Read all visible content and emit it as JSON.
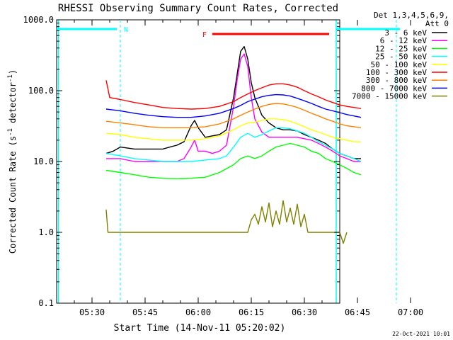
{
  "chart_data": {
    "type": "line",
    "title": "RHESSI Observing Summary Count Rates, Corrected",
    "xlabel": "Start Time (14-Nov-11 05:20:02)",
    "ylabel_main": "Corrected Count Rate (s",
    "ylabel_sup1": "-1",
    "ylabel_mid": " detector",
    "ylabel_sup2": "-1",
    "ylabel_end": ")",
    "yscale": "log",
    "ylim": [
      0.1,
      1000
    ],
    "y_ticks": [
      {
        "v": 0.1,
        "label": "0.1"
      },
      {
        "v": 1,
        "label": "1.0"
      },
      {
        "v": 10,
        "label": "10.0"
      },
      {
        "v": 100,
        "label": "100.0"
      },
      {
        "v": 1000,
        "label": "1000.0"
      }
    ],
    "xlim_min": [
      20,
      100
    ],
    "x_ticks": [
      {
        "m": 30,
        "label": "05:30"
      },
      {
        "m": 45,
        "label": "05:45"
      },
      {
        "m": 60,
        "label": "06:00"
      },
      {
        "m": 75,
        "label": "06:15"
      },
      {
        "m": 90,
        "label": "06:30"
      },
      {
        "m": 105,
        "label": "06:45"
      },
      {
        "m": 120,
        "label": "07:00"
      }
    ],
    "legend_header1": "Det 1,3,4,5,6,9,",
    "legend_header2": "Att 0",
    "series": [
      {
        "name": "3 - 6 keV",
        "color": "#000000",
        "points": [
          [
            34,
            13
          ],
          [
            36,
            14
          ],
          [
            38,
            16
          ],
          [
            42,
            15
          ],
          [
            46,
            15
          ],
          [
            50,
            15
          ],
          [
            52,
            16
          ],
          [
            54,
            17
          ],
          [
            56,
            19
          ],
          [
            58,
            32
          ],
          [
            59,
            38
          ],
          [
            60,
            30
          ],
          [
            62,
            22
          ],
          [
            64,
            23
          ],
          [
            66,
            24
          ],
          [
            68,
            28
          ],
          [
            70,
            80
          ],
          [
            71,
            170
          ],
          [
            72,
            360
          ],
          [
            73,
            420
          ],
          [
            74,
            280
          ],
          [
            75,
            130
          ],
          [
            76,
            80
          ],
          [
            78,
            45
          ],
          [
            80,
            35
          ],
          [
            82,
            30
          ],
          [
            84,
            28
          ],
          [
            86,
            28
          ],
          [
            88,
            27
          ],
          [
            90,
            24
          ],
          [
            92,
            22
          ],
          [
            94,
            20
          ],
          [
            96,
            18
          ],
          [
            98,
            15
          ],
          [
            100,
            13
          ],
          [
            102,
            12
          ],
          [
            104,
            11
          ],
          [
            106,
            11
          ]
        ]
      },
      {
        "name": "6 - 12 keV",
        "color": "#ff00ff",
        "points": [
          [
            34,
            11
          ],
          [
            38,
            11
          ],
          [
            42,
            10
          ],
          [
            46,
            10
          ],
          [
            50,
            10
          ],
          [
            54,
            10
          ],
          [
            56,
            11
          ],
          [
            58,
            16
          ],
          [
            59,
            20
          ],
          [
            60,
            14
          ],
          [
            62,
            14
          ],
          [
            64,
            13
          ],
          [
            66,
            14
          ],
          [
            68,
            17
          ],
          [
            70,
            60
          ],
          [
            71,
            140
          ],
          [
            72,
            280
          ],
          [
            73,
            330
          ],
          [
            74,
            220
          ],
          [
            75,
            80
          ],
          [
            76,
            40
          ],
          [
            78,
            26
          ],
          [
            80,
            22
          ],
          [
            82,
            22
          ],
          [
            84,
            22
          ],
          [
            86,
            22
          ],
          [
            88,
            22
          ],
          [
            90,
            21
          ],
          [
            92,
            20
          ],
          [
            94,
            18
          ],
          [
            96,
            16
          ],
          [
            98,
            14
          ],
          [
            100,
            12
          ],
          [
            102,
            11
          ],
          [
            104,
            10
          ],
          [
            106,
            10
          ]
        ]
      },
      {
        "name": "12 - 25 keV",
        "color": "#00ff00",
        "points": [
          [
            34,
            7.5
          ],
          [
            38,
            7
          ],
          [
            42,
            6.5
          ],
          [
            46,
            6
          ],
          [
            50,
            5.8
          ],
          [
            54,
            5.7
          ],
          [
            58,
            5.8
          ],
          [
            62,
            6
          ],
          [
            66,
            7
          ],
          [
            70,
            9
          ],
          [
            72,
            11
          ],
          [
            74,
            12
          ],
          [
            76,
            11
          ],
          [
            78,
            12
          ],
          [
            80,
            14
          ],
          [
            82,
            16
          ],
          [
            84,
            17
          ],
          [
            86,
            18
          ],
          [
            88,
            17
          ],
          [
            90,
            16
          ],
          [
            92,
            14
          ],
          [
            94,
            13
          ],
          [
            96,
            11
          ],
          [
            98,
            10
          ],
          [
            100,
            9
          ],
          [
            102,
            8
          ],
          [
            104,
            7
          ],
          [
            106,
            6.5
          ]
        ]
      },
      {
        "name": "25 - 50 keV",
        "color": "#00ffff",
        "points": [
          [
            34,
            13
          ],
          [
            38,
            12
          ],
          [
            42,
            11
          ],
          [
            46,
            10.5
          ],
          [
            50,
            10
          ],
          [
            54,
            10
          ],
          [
            58,
            10
          ],
          [
            62,
            10.5
          ],
          [
            66,
            11
          ],
          [
            68,
            12
          ],
          [
            70,
            16
          ],
          [
            72,
            22
          ],
          [
            74,
            25
          ],
          [
            76,
            22
          ],
          [
            78,
            24
          ],
          [
            80,
            27
          ],
          [
            82,
            30
          ],
          [
            84,
            30
          ],
          [
            86,
            29
          ],
          [
            88,
            27
          ],
          [
            90,
            25
          ],
          [
            92,
            22
          ],
          [
            94,
            19
          ],
          [
            96,
            17
          ],
          [
            98,
            15
          ],
          [
            100,
            13
          ],
          [
            102,
            12
          ],
          [
            104,
            11
          ],
          [
            106,
            10
          ]
        ]
      },
      {
        "name": "50 - 100 keV",
        "color": "#ffff00",
        "points": [
          [
            34,
            25
          ],
          [
            38,
            24
          ],
          [
            42,
            22
          ],
          [
            46,
            21
          ],
          [
            50,
            20
          ],
          [
            54,
            20
          ],
          [
            58,
            20
          ],
          [
            62,
            21
          ],
          [
            66,
            23
          ],
          [
            70,
            28
          ],
          [
            72,
            32
          ],
          [
            74,
            35
          ],
          [
            76,
            36
          ],
          [
            78,
            38
          ],
          [
            80,
            40
          ],
          [
            82,
            40
          ],
          [
            84,
            39
          ],
          [
            86,
            37
          ],
          [
            88,
            34
          ],
          [
            90,
            31
          ],
          [
            92,
            28
          ],
          [
            94,
            26
          ],
          [
            96,
            24
          ],
          [
            98,
            22
          ],
          [
            100,
            21
          ],
          [
            102,
            20
          ],
          [
            104,
            19
          ],
          [
            106,
            19
          ]
        ]
      },
      {
        "name": "100 - 300 keV",
        "color": "#ff0000",
        "points": [
          [
            34,
            140
          ],
          [
            35,
            80
          ],
          [
            38,
            75
          ],
          [
            42,
            68
          ],
          [
            46,
            63
          ],
          [
            50,
            58
          ],
          [
            54,
            56
          ],
          [
            58,
            55
          ],
          [
            62,
            56
          ],
          [
            66,
            60
          ],
          [
            70,
            70
          ],
          [
            72,
            80
          ],
          [
            74,
            90
          ],
          [
            76,
            100
          ],
          [
            78,
            110
          ],
          [
            80,
            120
          ],
          [
            82,
            125
          ],
          [
            84,
            125
          ],
          [
            86,
            120
          ],
          [
            88,
            112
          ],
          [
            90,
            100
          ],
          [
            92,
            90
          ],
          [
            94,
            82
          ],
          [
            96,
            74
          ],
          [
            98,
            68
          ],
          [
            100,
            63
          ],
          [
            102,
            60
          ],
          [
            104,
            58
          ],
          [
            106,
            56
          ]
        ]
      },
      {
        "name": "300 - 800 keV",
        "color": "#ff8000",
        "points": [
          [
            34,
            37
          ],
          [
            38,
            35
          ],
          [
            42,
            33
          ],
          [
            46,
            31
          ],
          [
            50,
            30
          ],
          [
            54,
            30
          ],
          [
            58,
            30
          ],
          [
            62,
            31
          ],
          [
            66,
            34
          ],
          [
            70,
            40
          ],
          [
            72,
            45
          ],
          [
            74,
            50
          ],
          [
            76,
            55
          ],
          [
            78,
            60
          ],
          [
            80,
            64
          ],
          [
            82,
            66
          ],
          [
            84,
            65
          ],
          [
            86,
            62
          ],
          [
            88,
            58
          ],
          [
            90,
            53
          ],
          [
            92,
            48
          ],
          [
            94,
            44
          ],
          [
            96,
            40
          ],
          [
            98,
            37
          ],
          [
            100,
            34
          ],
          [
            102,
            32
          ],
          [
            104,
            31
          ],
          [
            106,
            30
          ]
        ]
      },
      {
        "name": "800 - 7000 keV",
        "color": "#0000ff",
        "points": [
          [
            34,
            55
          ],
          [
            38,
            52
          ],
          [
            42,
            48
          ],
          [
            46,
            45
          ],
          [
            50,
            43
          ],
          [
            54,
            42
          ],
          [
            58,
            42
          ],
          [
            62,
            44
          ],
          [
            66,
            48
          ],
          [
            70,
            56
          ],
          [
            72,
            62
          ],
          [
            74,
            70
          ],
          [
            76,
            76
          ],
          [
            78,
            82
          ],
          [
            80,
            86
          ],
          [
            82,
            88
          ],
          [
            84,
            87
          ],
          [
            86,
            84
          ],
          [
            88,
            78
          ],
          [
            90,
            72
          ],
          [
            92,
            66
          ],
          [
            94,
            60
          ],
          [
            96,
            55
          ],
          [
            98,
            52
          ],
          [
            100,
            49
          ],
          [
            102,
            46
          ],
          [
            104,
            44
          ],
          [
            106,
            42
          ]
        ]
      },
      {
        "name": "7000 - 15000 keV",
        "color": "#808000",
        "points": [
          [
            34,
            2.1
          ],
          [
            34.5,
            1.0
          ],
          [
            36,
            1.0
          ],
          [
            38,
            1.0
          ],
          [
            42,
            1.0
          ],
          [
            46,
            1.0
          ],
          [
            50,
            1.0
          ],
          [
            54,
            1.0
          ],
          [
            58,
            1.0
          ],
          [
            62,
            1.0
          ],
          [
            66,
            1.0
          ],
          [
            70,
            1.0
          ],
          [
            72,
            1.0
          ],
          [
            74,
            1.0
          ],
          [
            75,
            1.5
          ],
          [
            76,
            1.8
          ],
          [
            77,
            1.3
          ],
          [
            78,
            2.3
          ],
          [
            79,
            1.4
          ],
          [
            80,
            2.6
          ],
          [
            81,
            1.2
          ],
          [
            82,
            2.0
          ],
          [
            83,
            1.3
          ],
          [
            84,
            2.8
          ],
          [
            85,
            1.4
          ],
          [
            86,
            2.2
          ],
          [
            87,
            1.3
          ],
          [
            88,
            2.5
          ],
          [
            89,
            1.2
          ],
          [
            90,
            1.8
          ],
          [
            91,
            1.0
          ],
          [
            92,
            1.0
          ],
          [
            94,
            1.0
          ],
          [
            96,
            1.0
          ],
          [
            98,
            1.0
          ],
          [
            100,
            1.0
          ],
          [
            101,
            0.7
          ],
          [
            102,
            1.0
          ]
        ]
      }
    ],
    "flags": [
      {
        "label": "N",
        "color": "#00ffff"
      },
      {
        "label": "F",
        "color": "#ff0000"
      }
    ],
    "night_intervals_min": [
      [
        20,
        38
      ]
    ],
    "flare_interval_min": [
      64,
      97
    ],
    "footer_date": "22-Oct-2021 10:01"
  }
}
